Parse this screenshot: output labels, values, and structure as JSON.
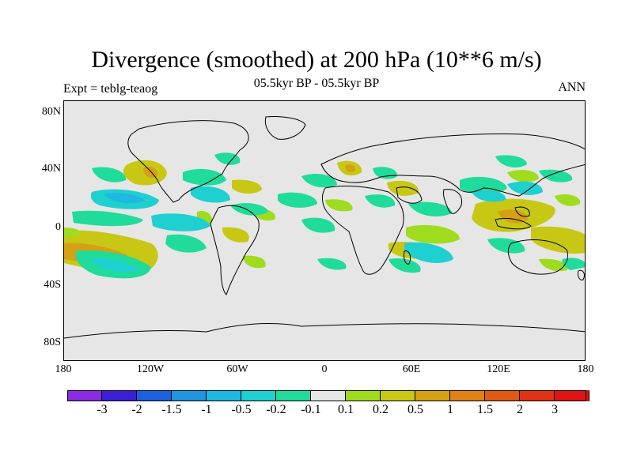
{
  "title": "Divergence (smoothed) at 200 hPa (10**6 m/s)",
  "subtitle": "05.5kyr BP - 05.5kyr BP",
  "experiment": "Expt = teblg-teaog",
  "period": "ANN",
  "lat_ticks": [
    "80N",
    "40N",
    "0",
    "40S",
    "80S"
  ],
  "lon_ticks": [
    "180",
    "120W",
    "60W",
    "0",
    "60E",
    "120E",
    "180"
  ],
  "colorbar": {
    "colors": [
      "#8b2be2",
      "#3a1ed8",
      "#1e5fe0",
      "#1e96e0",
      "#1eb8e0",
      "#1ed0d0",
      "#20dc9a",
      "#e6e6e6",
      "#a0dc1e",
      "#c8c814",
      "#d6a014",
      "#e08214",
      "#e05a14",
      "#e03214",
      "#e01414"
    ],
    "labels": [
      "-3",
      "-2",
      "-1.5",
      "-1",
      "-0.5",
      "-0.2",
      "-0.1",
      "0.1",
      "0.2",
      "0.5",
      "1",
      "1.5",
      "2",
      "3"
    ]
  }
}
